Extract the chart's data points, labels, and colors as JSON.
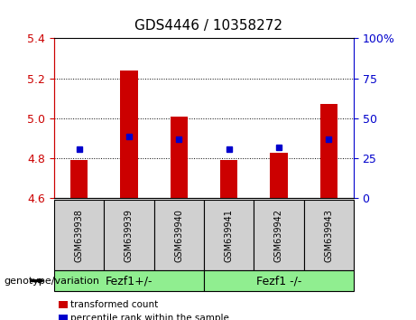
{
  "title": "GDS4446 / 10358272",
  "samples": [
    "GSM639938",
    "GSM639939",
    "GSM639940",
    "GSM639941",
    "GSM639942",
    "GSM639943"
  ],
  "bar_values": [
    4.79,
    5.24,
    5.01,
    4.79,
    4.83,
    5.07
  ],
  "bar_base": 4.6,
  "percentile_values": [
    4.845,
    4.91,
    4.895,
    4.845,
    4.855,
    4.895
  ],
  "ylim": [
    4.6,
    5.4
  ],
  "yticks_left": [
    4.6,
    4.8,
    5.0,
    5.2,
    5.4
  ],
  "yticks_right": [
    0,
    25,
    50,
    75,
    100
  ],
  "bar_color": "#cc0000",
  "percentile_color": "#0000cc",
  "groups": [
    {
      "label": "Fezf1+/-",
      "indices": [
        0,
        1,
        2
      ],
      "color": "#90ee90"
    },
    {
      "label": "Fezf1 -/-",
      "indices": [
        3,
        4,
        5
      ],
      "color": "#90ee90"
    }
  ],
  "group_row_label": "genotype/variation",
  "legend_items": [
    {
      "label": "transformed count",
      "color": "#cc0000"
    },
    {
      "label": "percentile rank within the sample",
      "color": "#0000cc"
    }
  ],
  "sample_box_color": "#d0d0d0",
  "bar_width": 0.35
}
